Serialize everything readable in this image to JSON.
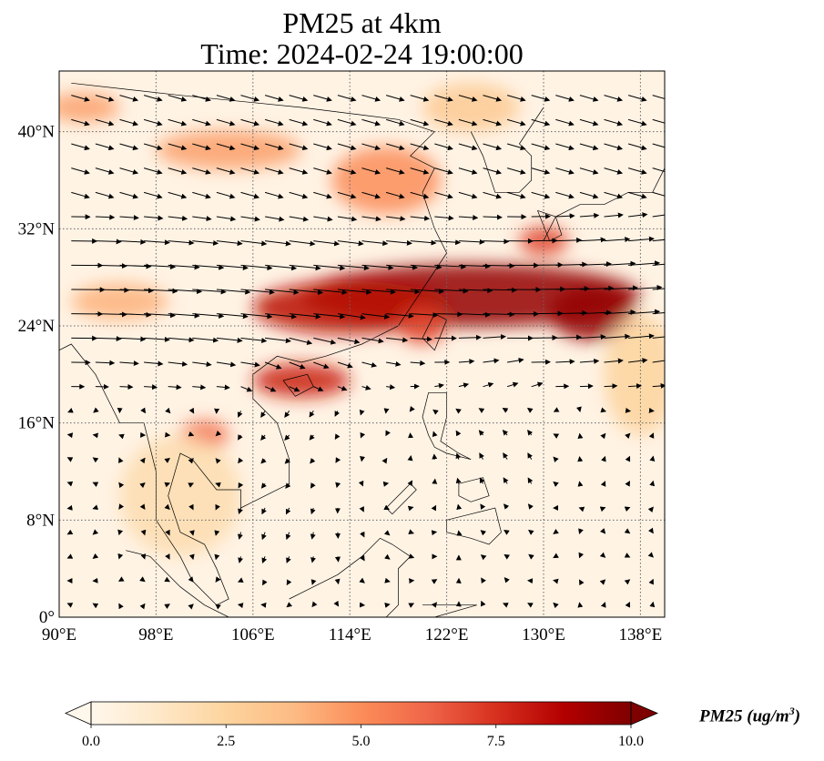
{
  "title": {
    "line1": "PM25 at 4km",
    "line2": "Time: 2024-02-24 19:00:00"
  },
  "map": {
    "lon_range": [
      90,
      140
    ],
    "lat_range": [
      0,
      45
    ],
    "lat_ticks": [
      {
        "value": 0,
        "label": "0°"
      },
      {
        "value": 8,
        "label": "8°N"
      },
      {
        "value": 16,
        "label": "16°N"
      },
      {
        "value": 24,
        "label": "24°N"
      },
      {
        "value": 32,
        "label": "32°N"
      },
      {
        "value": 40,
        "label": "40°N"
      }
    ],
    "lon_ticks": [
      {
        "value": 90,
        "label": "90°E"
      },
      {
        "value": 98,
        "label": "98°E"
      },
      {
        "value": 106,
        "label": "106°E"
      },
      {
        "value": 114,
        "label": "114°E"
      },
      {
        "value": 122,
        "label": "122°E"
      },
      {
        "value": 130,
        "label": "130°E"
      },
      {
        "value": 138,
        "label": "138°E"
      }
    ],
    "gridlines": "dotted",
    "background_color": "#fff3e4"
  },
  "colorbar": {
    "label": "PM25 (ug/m",
    "label_sup": "3",
    "label_close": ")",
    "range": [
      0,
      10
    ],
    "extend": "both",
    "colormap": "OrRd",
    "ticks": [
      {
        "value": 0,
        "label": "0.0"
      },
      {
        "value": 2.5,
        "label": "2.5"
      },
      {
        "value": 5,
        "label": "5.0"
      },
      {
        "value": 7.5,
        "label": "7.5"
      },
      {
        "value": 10,
        "label": "10.0"
      }
    ]
  },
  "plumes": [
    {
      "name": "main-plume-east",
      "lon": 124,
      "lat": 26.5,
      "rx": 14,
      "ry": 2.6,
      "value": 9.5
    },
    {
      "name": "main-plume-west",
      "lon": 114,
      "lat": 25.5,
      "rx": 8,
      "ry": 2.2,
      "value": 8.5
    },
    {
      "name": "plume-japan-sea",
      "lon": 134,
      "lat": 25,
      "rx": 3.5,
      "ry": 2.2,
      "value": 9.5
    },
    {
      "name": "plume-scs-arc",
      "lon": 110,
      "lat": 19.5,
      "rx": 4,
      "ry": 1.4,
      "value": 8
    },
    {
      "name": "plume-north-china",
      "lon": 117,
      "lat": 36,
      "rx": 4.5,
      "ry": 2.8,
      "value": 5
    },
    {
      "name": "plume-mongolia",
      "lon": 104,
      "lat": 38.5,
      "rx": 6,
      "ry": 1.6,
      "value": 4.5
    },
    {
      "name": "plume-korea",
      "lon": 124,
      "lat": 42,
      "rx": 4,
      "ry": 2,
      "value": 3
    },
    {
      "name": "plume-japan",
      "lon": 130,
      "lat": 31,
      "rx": 2,
      "ry": 1.2,
      "value": 7
    },
    {
      "name": "plume-west-edge",
      "lon": 92,
      "lat": 42,
      "rx": 3,
      "ry": 1.2,
      "value": 4.5
    },
    {
      "name": "plume-myanmar",
      "lon": 95,
      "lat": 26,
      "rx": 4,
      "ry": 1.5,
      "value": 4
    },
    {
      "name": "plume-laos",
      "lon": 102,
      "lat": 15,
      "rx": 2,
      "ry": 1.2,
      "value": 6
    },
    {
      "name": "plume-taiwan",
      "lon": 120,
      "lat": 24,
      "rx": 2,
      "ry": 1.5,
      "value": 7
    },
    {
      "name": "plume-pacific-east",
      "lon": 138,
      "lat": 20,
      "rx": 3,
      "ry": 5,
      "value": 2.5
    },
    {
      "name": "plume-indochina",
      "lon": 100,
      "lat": 10,
      "rx": 5,
      "ry": 5,
      "value": 2
    }
  ],
  "coastlines": [
    {
      "name": "china-coast",
      "points": [
        [
          91,
          44
        ],
        [
          100,
          43
        ],
        [
          110,
          42
        ],
        [
          118,
          41
        ],
        [
          121,
          40
        ],
        [
          119,
          38
        ],
        [
          121,
          37
        ],
        [
          120,
          35
        ],
        [
          121,
          32
        ],
        [
          122,
          30
        ],
        [
          120,
          27
        ],
        [
          118,
          24
        ],
        [
          115,
          22.5
        ],
        [
          112,
          21.5
        ],
        [
          110,
          21
        ],
        [
          108,
          21.5
        ],
        [
          106,
          20
        ],
        [
          106,
          18
        ],
        [
          108,
          16
        ],
        [
          109,
          13
        ],
        [
          109,
          11
        ],
        [
          107,
          10
        ],
        [
          105,
          9
        ],
        [
          105,
          10.5
        ],
        [
          103,
          10.5
        ],
        [
          101,
          13
        ],
        [
          100,
          13.5
        ],
        [
          99,
          10
        ],
        [
          100,
          7
        ],
        [
          102,
          6
        ],
        [
          103,
          4
        ],
        [
          104,
          1.5
        ],
        [
          103,
          1
        ],
        [
          101,
          3
        ],
        [
          100,
          5
        ],
        [
          98,
          8
        ],
        [
          98,
          12
        ],
        [
          97,
          16
        ],
        [
          95,
          16
        ],
        [
          94,
          18
        ],
        [
          93,
          20
        ],
        [
          91,
          22.5
        ],
        [
          90,
          22
        ]
      ]
    },
    {
      "name": "korea-coast",
      "points": [
        [
          124,
          40
        ],
        [
          125,
          38
        ],
        [
          126,
          35
        ],
        [
          128,
          35
        ],
        [
          129,
          36
        ],
        [
          129,
          38
        ],
        [
          128,
          39
        ],
        [
          130,
          42
        ]
      ]
    },
    {
      "name": "japan-honshu",
      "points": [
        [
          130,
          31
        ],
        [
          131,
          33
        ],
        [
          133,
          34
        ],
        [
          135,
          34
        ],
        [
          137,
          35
        ],
        [
          139,
          35
        ],
        [
          140,
          37
        ],
        [
          140,
          40
        ]
      ]
    },
    {
      "name": "japan-kyushu",
      "points": [
        [
          129.5,
          33.5
        ],
        [
          131,
          33
        ],
        [
          131.5,
          31.5
        ],
        [
          130.5,
          31
        ],
        [
          129.5,
          33.5
        ]
      ]
    },
    {
      "name": "taiwan",
      "points": [
        [
          121,
          25
        ],
        [
          122,
          24.5
        ],
        [
          121,
          22
        ],
        [
          120,
          23
        ],
        [
          121,
          25
        ]
      ]
    },
    {
      "name": "hainan",
      "points": [
        [
          108.5,
          19.5
        ],
        [
          110.5,
          20
        ],
        [
          111,
          19
        ],
        [
          109.5,
          18.2
        ],
        [
          108.5,
          19.5
        ]
      ]
    },
    {
      "name": "luzon",
      "points": [
        [
          120.5,
          18.5
        ],
        [
          122,
          18.5
        ],
        [
          122,
          16.5
        ],
        [
          121.5,
          14.5
        ],
        [
          123,
          13.5
        ],
        [
          124,
          13
        ],
        [
          122,
          13.5
        ],
        [
          121,
          14
        ],
        [
          120.5,
          15
        ],
        [
          120,
          16.5
        ],
        [
          120.5,
          18.5
        ]
      ]
    },
    {
      "name": "mindanao",
      "points": [
        [
          122,
          8
        ],
        [
          124,
          8.5
        ],
        [
          126,
          9
        ],
        [
          126.5,
          7
        ],
        [
          125.5,
          6
        ],
        [
          124,
          6.5
        ],
        [
          122,
          7
        ],
        [
          122,
          8
        ]
      ]
    },
    {
      "name": "philippines-visayas",
      "points": [
        [
          123,
          11
        ],
        [
          125,
          11.5
        ],
        [
          125.5,
          10
        ],
        [
          124,
          9.5
        ],
        [
          123,
          10
        ],
        [
          123,
          11
        ]
      ]
    },
    {
      "name": "palawan",
      "points": [
        [
          117.5,
          8.5
        ],
        [
          119.5,
          10.5
        ],
        [
          119,
          11
        ],
        [
          117,
          9
        ],
        [
          117.5,
          8.5
        ]
      ]
    },
    {
      "name": "borneo",
      "points": [
        [
          109,
          1.5
        ],
        [
          110,
          2
        ],
        [
          113,
          3.5
        ],
        [
          115,
          5
        ],
        [
          116.5,
          6.5
        ],
        [
          117.5,
          6
        ],
        [
          119,
          5
        ],
        [
          118,
          4
        ],
        [
          118,
          1
        ],
        [
          117,
          0
        ]
      ]
    },
    {
      "name": "sumatra",
      "points": [
        [
          95.5,
          5.5
        ],
        [
          97.5,
          5
        ],
        [
          100,
          2.5
        ],
        [
          102,
          1
        ],
        [
          104,
          0
        ]
      ]
    },
    {
      "name": "sulawesi",
      "points": [
        [
          120,
          1
        ],
        [
          123,
          1
        ],
        [
          124.5,
          1
        ],
        [
          121,
          0
        ]
      ]
    },
    {
      "name": "new-guinea",
      "points": [
        [
          131,
          0
        ],
        [
          132,
          -0.5
        ],
        [
          135,
          -3
        ]
      ]
    }
  ],
  "vectors": {
    "grid_step_lon": 2,
    "grid_step_lat": 2,
    "max_speed_ms": 25
  }
}
